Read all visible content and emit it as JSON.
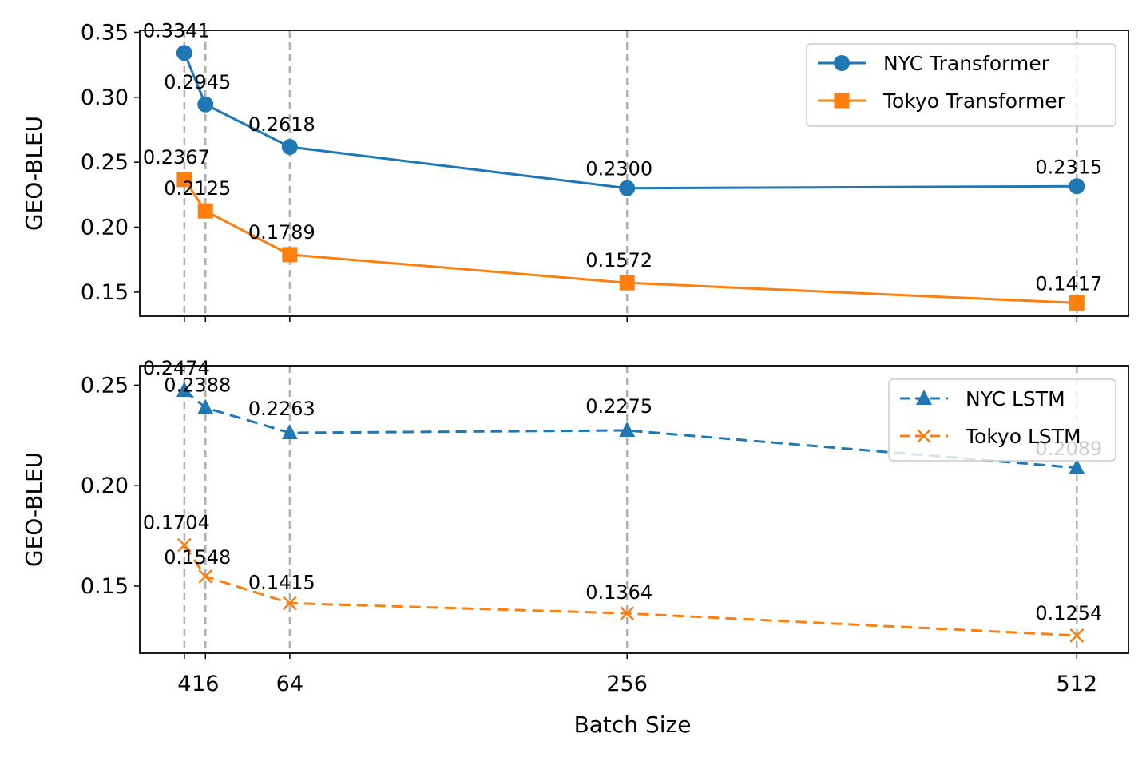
{
  "chart_data": [
    {
      "type": "line",
      "panel": "top",
      "title": "",
      "xlabel": "",
      "ylabel": "GEO-BLEU",
      "x": [
        4,
        16,
        64,
        256,
        512
      ],
      "xlim": [
        -21.4,
        541.4
      ],
      "ylim": [
        0.1315,
        0.3515
      ],
      "yticks": [
        0.15,
        0.2,
        0.25,
        0.3,
        0.35
      ],
      "ytick_labels": [
        "0.15",
        "0.20",
        "0.25",
        "0.30",
        "0.35"
      ],
      "grid": "vertical dashed at x values",
      "legend": "top-right",
      "series": [
        {
          "name": "NYC Transformer",
          "color": "#1f77b4",
          "marker": "circle",
          "linestyle": "solid",
          "values": [
            0.3341,
            0.2945,
            0.2618,
            0.23,
            0.2315
          ],
          "labels": [
            "0.3341",
            "0.2945",
            "0.2618",
            "0.2300",
            "0.2315"
          ]
        },
        {
          "name": "Tokyo Transformer",
          "color": "#ff7f0e",
          "marker": "square",
          "linestyle": "solid",
          "values": [
            0.2367,
            0.2125,
            0.1789,
            0.1572,
            0.1417
          ],
          "labels": [
            "0.2367",
            "0.2125",
            "0.1789",
            "0.1572",
            "0.1417"
          ]
        }
      ]
    },
    {
      "type": "line",
      "panel": "bottom",
      "title": "",
      "xlabel": "Batch Size",
      "ylabel": "GEO-BLEU",
      "x": [
        4,
        16,
        64,
        256,
        512
      ],
      "xlim": [
        -21.4,
        541.4
      ],
      "ylim": [
        0.1166,
        0.2597
      ],
      "yticks": [
        0.15,
        0.2,
        0.25
      ],
      "ytick_labels": [
        "0.15",
        "0.20",
        "0.25"
      ],
      "xtick_labels": [
        "4",
        "16",
        "64",
        "256",
        "512"
      ],
      "grid": "vertical dashed at x values",
      "legend": "top-right",
      "series": [
        {
          "name": "NYC LSTM",
          "color": "#1f77b4",
          "marker": "triangle",
          "linestyle": "dashed",
          "values": [
            0.2474,
            0.2388,
            0.2263,
            0.2275,
            0.2089
          ],
          "labels": [
            "0.2474",
            "0.2388",
            "0.2263",
            "0.2275",
            "0.2089"
          ]
        },
        {
          "name": "Tokyo LSTM",
          "color": "#ff7f0e",
          "marker": "x",
          "linestyle": "dashed",
          "values": [
            0.1704,
            0.1548,
            0.1415,
            0.1364,
            0.1254
          ],
          "labels": [
            "0.1704",
            "0.1548",
            "0.1415",
            "0.1364",
            "0.1254"
          ]
        }
      ]
    }
  ]
}
